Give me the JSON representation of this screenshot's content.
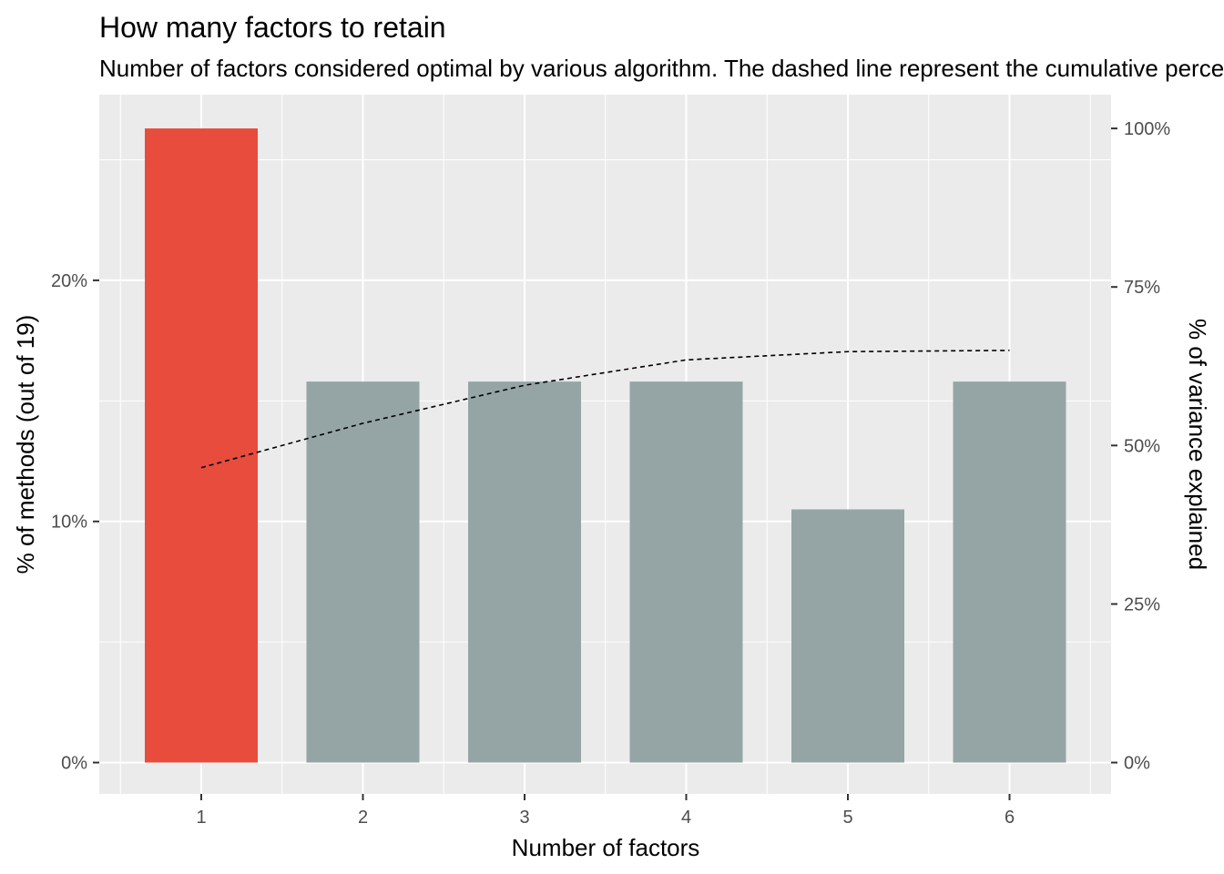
{
  "chart_data": {
    "type": "bar",
    "title": "How many factors to retain",
    "subtitle": "Number of factors considered optimal by various algorithm. The dashed line represent the cumulative percentage of variance explained",
    "xlabel": "Number of factors",
    "ylabel": "% of methods (out of 19)",
    "ylabel_right": "% of variance explained",
    "categories": [
      "1",
      "2",
      "3",
      "4",
      "5",
      "6"
    ],
    "values": [
      26.3,
      15.8,
      15.8,
      15.8,
      10.5,
      15.8
    ],
    "highlight_index": 0,
    "ylim": [
      -1.3,
      27.7
    ],
    "y_ticks": [
      0,
      10,
      20
    ],
    "y_tick_labels": [
      "0%",
      "10%",
      "20%"
    ],
    "y2_ticks": [
      0,
      25,
      50,
      75,
      100
    ],
    "y2_tick_labels": [
      "0%",
      "25%",
      "50%",
      "75%",
      "100%"
    ],
    "y2lim": [
      0,
      100
    ],
    "line_series": {
      "name": "",
      "style": "dashed",
      "x": [
        1,
        2,
        3,
        4,
        5,
        6
      ],
      "values": [
        46.5,
        53.5,
        59.5,
        63.5,
        64.8,
        65.0
      ]
    },
    "grid": true,
    "colors": {
      "highlight_bar": "#E74C3C",
      "bar": "#95A5A6",
      "panel": "#EBEBEB",
      "grid": "#FFFFFF",
      "line": "#000000"
    }
  }
}
